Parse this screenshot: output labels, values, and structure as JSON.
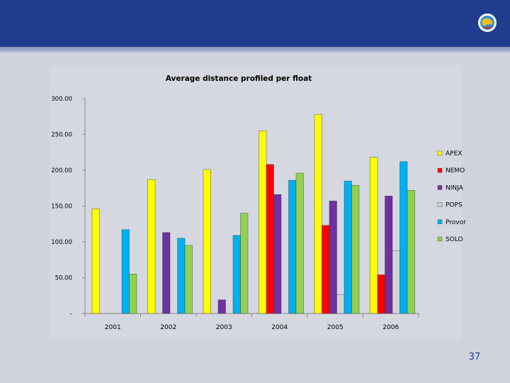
{
  "slide": {
    "page_number": "37",
    "colors": {
      "header": "#203c8c",
      "background": "#cfd3de"
    }
  },
  "logo": {
    "icon": "globe-seal-icon"
  },
  "chart_data": {
    "type": "bar",
    "title": "Average distance profiled per float",
    "xlabel": "",
    "ylabel": "",
    "categories": [
      "2001",
      "2002",
      "2003",
      "2004",
      "2005",
      "2006"
    ],
    "ylim": [
      0,
      300
    ],
    "yticks": [
      0,
      50,
      100,
      150,
      200,
      250,
      300
    ],
    "ytick_labels": [
      "-",
      "50.00",
      "100.00",
      "150.00",
      "200.00",
      "250.00",
      "300.00"
    ],
    "grid": false,
    "legend_position": "right",
    "series": [
      {
        "name": "APEX",
        "color": "#ffff00",
        "values": [
          146,
          187,
          201,
          255,
          278,
          218
        ]
      },
      {
        "name": "NEMO",
        "color": "#ff0000",
        "values": [
          0,
          0,
          0,
          208,
          123,
          54
        ]
      },
      {
        "name": "NINJA",
        "color": "#7030a0",
        "values": [
          0,
          113,
          19,
          166,
          157,
          164
        ]
      },
      {
        "name": "POPS",
        "color": "#d3d3d3",
        "values": [
          0,
          0,
          0,
          0,
          26,
          88
        ]
      },
      {
        "name": "Provor",
        "color": "#00b0f0",
        "values": [
          117,
          105,
          109,
          186,
          185,
          212
        ]
      },
      {
        "name": "SOLO",
        "color": "#92d050",
        "values": [
          55,
          95,
          140,
          196,
          179,
          172
        ]
      }
    ]
  }
}
